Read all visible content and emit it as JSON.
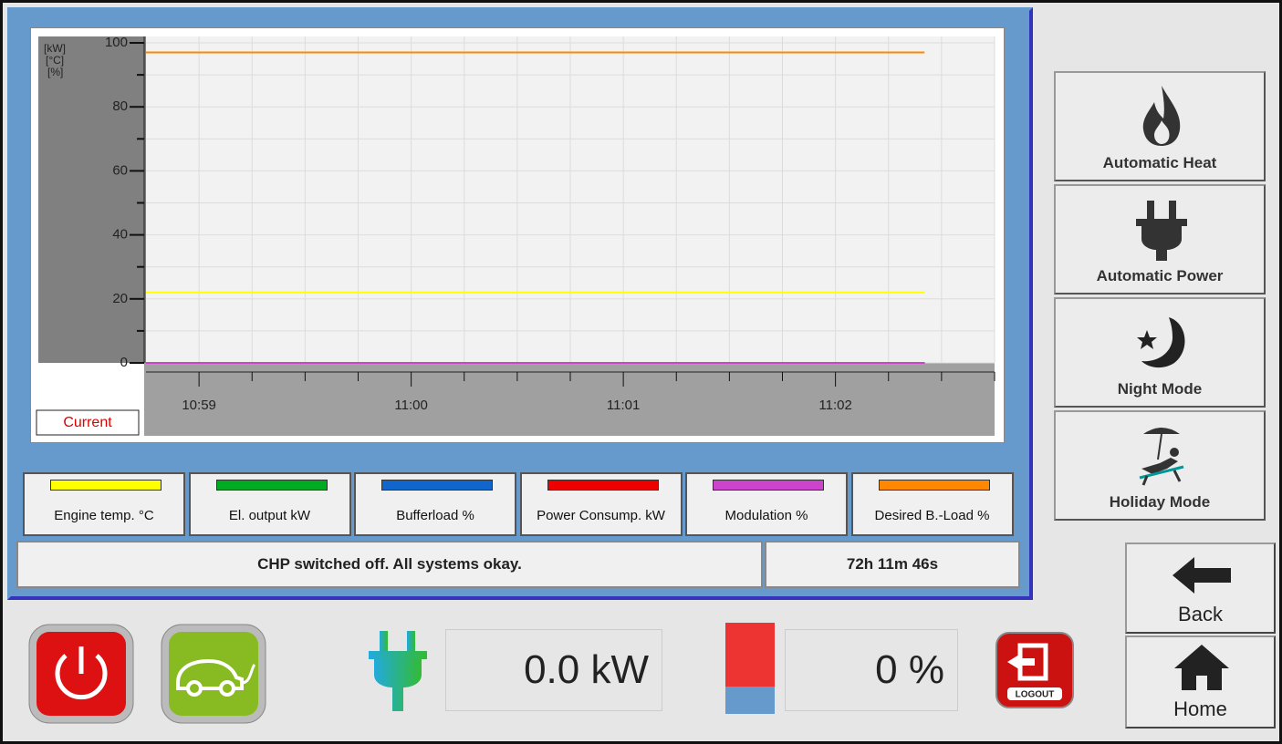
{
  "chart_data": {
    "type": "line",
    "y_axis_label": [
      "[kW]",
      "[°C]",
      "[%]"
    ],
    "ylim": [
      0,
      102
    ],
    "yticks": [
      0,
      20,
      40,
      60,
      80,
      100
    ],
    "yminorticks": [
      10,
      30,
      50,
      70,
      90
    ],
    "xlim": [
      658.75,
      662.75
    ],
    "xticks": [
      {
        "value": 659,
        "label": "10:59"
      },
      {
        "value": 660,
        "label": "11:00"
      },
      {
        "value": 661,
        "label": "11:01"
      },
      {
        "value": 662,
        "label": "11:02"
      }
    ],
    "xminorticks": [
      659.25,
      659.5,
      659.75,
      660.25,
      660.5,
      660.75,
      661.25,
      661.5,
      661.75,
      662.25,
      662.5,
      662.75
    ],
    "grid": true,
    "cursor_label": "Current",
    "series": [
      {
        "name": "Engine temp. °C",
        "color": "#ffff00",
        "x": [
          658.75,
          662.42
        ],
        "values": [
          22,
          22
        ]
      },
      {
        "name": "El. output kW",
        "color": "#00aa22",
        "x": [
          658.75,
          662.42
        ],
        "values": [
          0,
          0
        ]
      },
      {
        "name": "Bufferload %",
        "color": "#1166cc",
        "x": [
          658.75,
          662.42
        ],
        "values": [
          0,
          0
        ]
      },
      {
        "name": "Power Consump. kW",
        "color": "#ee0000",
        "x": [
          658.75,
          662.42
        ],
        "values": [
          0,
          0
        ]
      },
      {
        "name": "Modulation %",
        "color": "#cc44cc",
        "x": [
          658.75,
          662.42
        ],
        "values": [
          0,
          0
        ]
      },
      {
        "name": "Desired B.-Load %",
        "color": "#ff8800",
        "x": [
          658.75,
          662.42
        ],
        "values": [
          97,
          97
        ]
      }
    ]
  },
  "status": {
    "message": "CHP switched off. All systems okay.",
    "runtime": "72h 11m 46s"
  },
  "mode_buttons": [
    "Automatic Heat",
    "Automatic Power",
    "Night Mode",
    "Holiday Mode"
  ],
  "nav_buttons": [
    "Back",
    "Home"
  ],
  "readouts": {
    "power": "0.0 kW",
    "buffer": "0 %"
  },
  "logout": "LOGOUT"
}
